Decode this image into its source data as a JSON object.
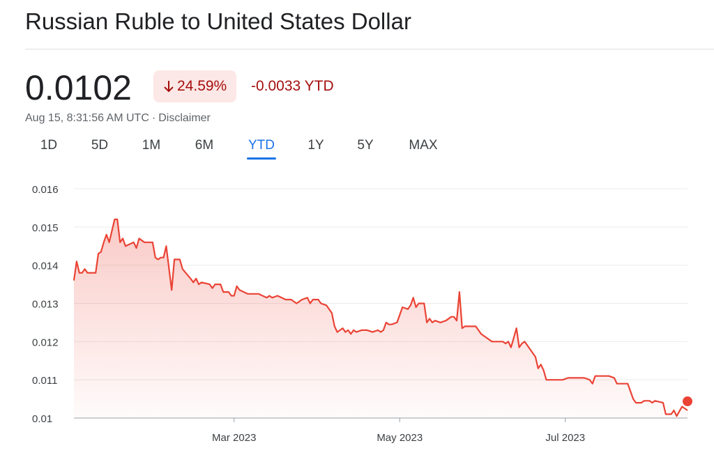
{
  "header": {
    "title": "Russian Ruble to United States Dollar"
  },
  "quote": {
    "price": "0.0102",
    "percent_change": "24.59%",
    "abs_change": "-0.0033 YTD",
    "timestamp": "Aug 15, 8:31:56 AM UTC",
    "disclaimer": "Disclaimer"
  },
  "tabs": [
    {
      "label": "1D"
    },
    {
      "label": "5D"
    },
    {
      "label": "1M"
    },
    {
      "label": "6M"
    },
    {
      "label": "YTD",
      "active": true
    },
    {
      "label": "1Y"
    },
    {
      "label": "5Y"
    },
    {
      "label": "MAX"
    }
  ],
  "colors": {
    "negative": "#a50e0e",
    "line": "#ea4335",
    "badge_bg": "#fce8e6",
    "accent": "#1a73e8"
  },
  "chart_data": {
    "type": "area",
    "ylim": [
      0.01,
      0.016
    ],
    "y_ticks": [
      "0.016",
      "0.015",
      "0.014",
      "0.013",
      "0.012",
      "0.011",
      "0.01"
    ],
    "x_ticks": [
      {
        "date": "2023-03-01",
        "label": "Mar 2023"
      },
      {
        "date": "2023-05-01",
        "label": "May 2023"
      },
      {
        "date": "2023-07-01",
        "label": "Jul 2023"
      }
    ],
    "xlim": [
      "2023-01-01",
      "2023-08-15"
    ],
    "grid": true,
    "series": [
      {
        "points": [
          [
            "2023-01-01",
            0.0136
          ],
          [
            "2023-01-02",
            0.0141
          ],
          [
            "2023-01-03",
            0.0138
          ],
          [
            "2023-01-04",
            0.0138
          ],
          [
            "2023-01-05",
            0.0139
          ],
          [
            "2023-01-06",
            0.0138
          ],
          [
            "2023-01-09",
            0.0138
          ],
          [
            "2023-01-10",
            0.0143
          ],
          [
            "2023-01-11",
            0.01435
          ],
          [
            "2023-01-12",
            0.0146
          ],
          [
            "2023-01-13",
            0.0148
          ],
          [
            "2023-01-14",
            0.0146
          ],
          [
            "2023-01-16",
            0.0152
          ],
          [
            "2023-01-17",
            0.0152
          ],
          [
            "2023-01-18",
            0.0146
          ],
          [
            "2023-01-19",
            0.0147
          ],
          [
            "2023-01-20",
            0.0145
          ],
          [
            "2023-01-23",
            0.0146
          ],
          [
            "2023-01-24",
            0.01445
          ],
          [
            "2023-01-25",
            0.0147
          ],
          [
            "2023-01-27",
            0.0146
          ],
          [
            "2023-01-30",
            0.0146
          ],
          [
            "2023-01-31",
            0.0142
          ],
          [
            "2023-02-01",
            0.01415
          ],
          [
            "2023-02-02",
            0.0142
          ],
          [
            "2023-02-03",
            0.0142
          ],
          [
            "2023-02-04",
            0.0145
          ],
          [
            "2023-02-06",
            0.01335
          ],
          [
            "2023-02-07",
            0.01415
          ],
          [
            "2023-02-09",
            0.01415
          ],
          [
            "2023-02-10",
            0.0139
          ],
          [
            "2023-02-13",
            0.01365
          ],
          [
            "2023-02-14",
            0.01355
          ],
          [
            "2023-02-15",
            0.01365
          ],
          [
            "2023-02-16",
            0.0135
          ],
          [
            "2023-02-17",
            0.01355
          ],
          [
            "2023-02-20",
            0.0135
          ],
          [
            "2023-02-21",
            0.0134
          ],
          [
            "2023-02-22",
            0.0135
          ],
          [
            "2023-02-24",
            0.0135
          ],
          [
            "2023-02-25",
            0.0133
          ],
          [
            "2023-02-27",
            0.0133
          ],
          [
            "2023-02-28",
            0.0132
          ],
          [
            "2023-03-01",
            0.0132
          ],
          [
            "2023-03-02",
            0.01345
          ],
          [
            "2023-03-03",
            0.01335
          ],
          [
            "2023-03-06",
            0.01325
          ],
          [
            "2023-03-10",
            0.01325
          ],
          [
            "2023-03-13",
            0.01315
          ],
          [
            "2023-03-14",
            0.0132
          ],
          [
            "2023-03-15",
            0.01315
          ],
          [
            "2023-03-17",
            0.0132
          ],
          [
            "2023-03-20",
            0.0131
          ],
          [
            "2023-03-22",
            0.0131
          ],
          [
            "2023-03-24",
            0.013
          ],
          [
            "2023-03-26",
            0.0131
          ],
          [
            "2023-03-28",
            0.01315
          ],
          [
            "2023-03-29",
            0.013
          ],
          [
            "2023-03-30",
            0.0131
          ],
          [
            "2023-04-01",
            0.0131
          ],
          [
            "2023-04-02",
            0.013
          ],
          [
            "2023-04-04",
            0.01295
          ],
          [
            "2023-04-06",
            0.01275
          ],
          [
            "2023-04-07",
            0.0124
          ],
          [
            "2023-04-08",
            0.01225
          ],
          [
            "2023-04-10",
            0.01235
          ],
          [
            "2023-04-11",
            0.01225
          ],
          [
            "2023-04-12",
            0.0123
          ],
          [
            "2023-04-13",
            0.0122
          ],
          [
            "2023-04-14",
            0.0123
          ],
          [
            "2023-04-15",
            0.01225
          ],
          [
            "2023-04-17",
            0.0123
          ],
          [
            "2023-04-19",
            0.0123
          ],
          [
            "2023-04-21",
            0.01225
          ],
          [
            "2023-04-23",
            0.0123
          ],
          [
            "2023-04-24",
            0.01225
          ],
          [
            "2023-04-25",
            0.0123
          ],
          [
            "2023-04-26",
            0.0125
          ],
          [
            "2023-04-27",
            0.01245
          ],
          [
            "2023-04-28",
            0.01245
          ],
          [
            "2023-04-30",
            0.0125
          ],
          [
            "2023-05-01",
            0.0127
          ],
          [
            "2023-05-02",
            0.0129
          ],
          [
            "2023-05-04",
            0.01285
          ],
          [
            "2023-05-05",
            0.01295
          ],
          [
            "2023-05-06",
            0.01315
          ],
          [
            "2023-05-07",
            0.0129
          ],
          [
            "2023-05-08",
            0.013
          ],
          [
            "2023-05-10",
            0.013
          ],
          [
            "2023-05-11",
            0.0125
          ],
          [
            "2023-05-12",
            0.0126
          ],
          [
            "2023-05-13",
            0.0125
          ],
          [
            "2023-05-14",
            0.01255
          ],
          [
            "2023-05-16",
            0.0125
          ],
          [
            "2023-05-18",
            0.01255
          ],
          [
            "2023-05-20",
            0.01265
          ],
          [
            "2023-05-21",
            0.01265
          ],
          [
            "2023-05-22",
            0.01255
          ],
          [
            "2023-05-23",
            0.0133
          ],
          [
            "2023-05-24",
            0.01235
          ],
          [
            "2023-05-25",
            0.0124
          ],
          [
            "2023-05-26",
            0.0124
          ],
          [
            "2023-05-27",
            0.0124
          ],
          [
            "2023-05-29",
            0.0124
          ],
          [
            "2023-05-31",
            0.0122
          ],
          [
            "2023-06-02",
            0.0121
          ],
          [
            "2023-06-04",
            0.012
          ],
          [
            "2023-06-06",
            0.012
          ],
          [
            "2023-06-08",
            0.012
          ],
          [
            "2023-06-09",
            0.01195
          ],
          [
            "2023-06-10",
            0.012
          ],
          [
            "2023-06-11",
            0.01185
          ],
          [
            "2023-06-12",
            0.0121
          ],
          [
            "2023-06-13",
            0.01235
          ],
          [
            "2023-06-14",
            0.01185
          ],
          [
            "2023-06-15",
            0.01195
          ],
          [
            "2023-06-16",
            0.012
          ],
          [
            "2023-06-18",
            0.0118
          ],
          [
            "2023-06-20",
            0.0116
          ],
          [
            "2023-06-21",
            0.0113
          ],
          [
            "2023-06-22",
            0.0114
          ],
          [
            "2023-06-23",
            0.01125
          ],
          [
            "2023-06-24",
            0.011
          ],
          [
            "2023-06-25",
            0.011
          ],
          [
            "2023-06-30",
            0.011
          ],
          [
            "2023-07-02",
            0.01105
          ],
          [
            "2023-07-04",
            0.01105
          ],
          [
            "2023-07-08",
            0.01105
          ],
          [
            "2023-07-10",
            0.011
          ],
          [
            "2023-07-11",
            0.0109
          ],
          [
            "2023-07-12",
            0.0111
          ],
          [
            "2023-07-14",
            0.0111
          ],
          [
            "2023-07-17",
            0.0111
          ],
          [
            "2023-07-19",
            0.01105
          ],
          [
            "2023-07-20",
            0.0109
          ],
          [
            "2023-07-21",
            0.0109
          ],
          [
            "2023-07-24",
            0.0109
          ],
          [
            "2023-07-26",
            0.0105
          ],
          [
            "2023-07-27",
            0.0104
          ],
          [
            "2023-07-29",
            0.0104
          ],
          [
            "2023-07-30",
            0.01045
          ],
          [
            "2023-08-01",
            0.01045
          ],
          [
            "2023-08-02",
            0.0104
          ],
          [
            "2023-08-03",
            0.01045
          ],
          [
            "2023-08-06",
            0.0104
          ],
          [
            "2023-08-07",
            0.0101
          ],
          [
            "2023-08-09",
            0.0101
          ],
          [
            "2023-08-10",
            0.0102
          ],
          [
            "2023-08-11",
            0.01005
          ],
          [
            "2023-08-13",
            0.0103
          ],
          [
            "2023-08-15",
            0.0102
          ]
        ]
      }
    ]
  }
}
